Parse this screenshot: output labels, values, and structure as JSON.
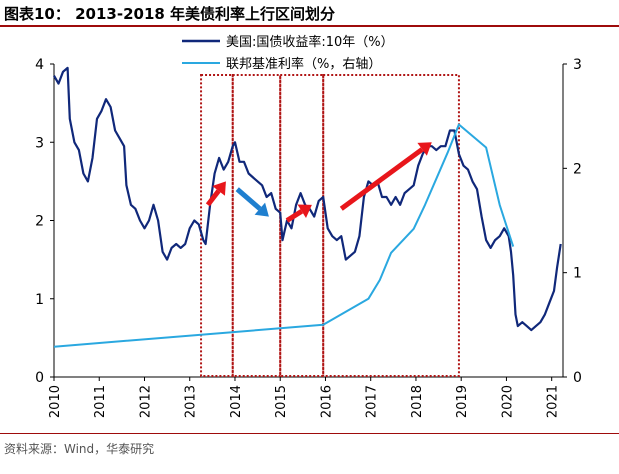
{
  "title": "图表10： 2013-2018 年美债利率上行区间划分",
  "source": "资料来源：Wind，华泰研究",
  "colors": {
    "treasury": "#10287a",
    "fed": "#2aa8e0",
    "up_arrow": "#e8161b",
    "down_arrow": "#1f7fcf",
    "box": "#b01515"
  },
  "chart_data": {
    "type": "line",
    "xlim": [
      2010,
      2021.25
    ],
    "x_ticks": [
      "2010",
      "2011",
      "2012",
      "2013",
      "2014",
      "2015",
      "2016",
      "2017",
      "2018",
      "2019",
      "2020",
      "2021"
    ],
    "y_left": {
      "lim": [
        0,
        4
      ],
      "ticks": [
        "0",
        "1",
        "2",
        "3",
        "4"
      ]
    },
    "y_right": {
      "lim": [
        0,
        3
      ],
      "ticks": [
        "0",
        "1",
        "2",
        "3"
      ]
    },
    "legend_position": "top-center",
    "grid": false,
    "series": [
      {
        "name": "美国:国债收益率:10年（%）",
        "axis": "left",
        "x": [
          2010.0,
          2010.1,
          2010.2,
          2010.3,
          2010.35,
          2010.45,
          2010.55,
          2010.65,
          2010.75,
          2010.85,
          2010.95,
          2011.05,
          2011.15,
          2011.25,
          2011.35,
          2011.45,
          2011.55,
          2011.6,
          2011.7,
          2011.8,
          2011.9,
          2012.0,
          2012.1,
          2012.2,
          2012.3,
          2012.4,
          2012.5,
          2012.6,
          2012.7,
          2012.8,
          2012.9,
          2013.0,
          2013.1,
          2013.2,
          2013.3,
          2013.35,
          2013.45,
          2013.55,
          2013.65,
          2013.75,
          2013.85,
          2013.95,
          2014.0,
          2014.1,
          2014.2,
          2014.3,
          2014.4,
          2014.5,
          2014.6,
          2014.7,
          2014.8,
          2014.9,
          2015.0,
          2015.05,
          2015.15,
          2015.25,
          2015.35,
          2015.45,
          2015.55,
          2015.65,
          2015.75,
          2015.85,
          2015.95,
          2016.05,
          2016.15,
          2016.25,
          2016.35,
          2016.45,
          2016.55,
          2016.65,
          2016.75,
          2016.85,
          2016.95,
          2017.05,
          2017.15,
          2017.25,
          2017.35,
          2017.45,
          2017.55,
          2017.65,
          2017.75,
          2017.85,
          2017.95,
          2018.05,
          2018.15,
          2018.25,
          2018.35,
          2018.45,
          2018.55,
          2018.65,
          2018.75,
          2018.85,
          2018.95,
          2019.05,
          2019.15,
          2019.25,
          2019.35,
          2019.45,
          2019.55,
          2019.65,
          2019.75,
          2019.85,
          2019.95,
          2020.05,
          2020.1,
          2020.15,
          2020.2,
          2020.25,
          2020.35,
          2020.45,
          2020.55,
          2020.65,
          2020.75,
          2020.85,
          2020.95,
          2021.05,
          2021.12,
          2021.2
        ],
        "values": [
          3.85,
          3.75,
          3.9,
          3.95,
          3.3,
          3.0,
          2.9,
          2.6,
          2.5,
          2.8,
          3.3,
          3.4,
          3.55,
          3.45,
          3.15,
          3.05,
          2.95,
          2.45,
          2.2,
          2.15,
          2.0,
          1.9,
          2.0,
          2.2,
          2.0,
          1.6,
          1.5,
          1.65,
          1.7,
          1.65,
          1.7,
          1.9,
          2.0,
          1.95,
          1.75,
          1.7,
          2.2,
          2.6,
          2.8,
          2.65,
          2.75,
          2.95,
          3.0,
          2.75,
          2.75,
          2.6,
          2.55,
          2.5,
          2.45,
          2.3,
          2.35,
          2.15,
          2.1,
          1.75,
          2.0,
          1.9,
          2.2,
          2.35,
          2.2,
          2.15,
          2.05,
          2.25,
          2.3,
          1.9,
          1.8,
          1.75,
          1.8,
          1.5,
          1.55,
          1.6,
          1.8,
          2.3,
          2.5,
          2.45,
          2.5,
          2.3,
          2.3,
          2.2,
          2.3,
          2.2,
          2.35,
          2.4,
          2.45,
          2.7,
          2.85,
          2.95,
          2.95,
          2.9,
          2.95,
          2.95,
          3.15,
          3.15,
          2.85,
          2.7,
          2.65,
          2.5,
          2.4,
          2.05,
          1.75,
          1.65,
          1.75,
          1.8,
          1.9,
          1.8,
          1.6,
          1.3,
          0.8,
          0.65,
          0.7,
          0.65,
          0.6,
          0.65,
          0.7,
          0.8,
          0.95,
          1.1,
          1.4,
          1.7
        ]
      },
      {
        "name": "联邦基准利率（%，右轴）",
        "axis": "right",
        "x": [
          2010.0,
          2015.95,
          2016.95,
          2017.2,
          2017.45,
          2017.95,
          2018.2,
          2018.45,
          2018.7,
          2018.95,
          2019.55,
          2019.85,
          2020.15
        ],
        "values": [
          0.29,
          0.5,
          0.75,
          0.93,
          1.19,
          1.42,
          1.65,
          1.9,
          2.15,
          2.42,
          2.2,
          1.65,
          1.25
        ]
      }
    ],
    "boxes": [
      {
        "x0": 2013.25,
        "x1": 2013.95
      },
      {
        "x0": 2013.95,
        "x1": 2015.0
      },
      {
        "x0": 2015.0,
        "x1": 2015.95
      },
      {
        "x0": 2015.95,
        "x1": 2018.95
      }
    ],
    "arrows": [
      {
        "kind": "up",
        "x0": 2013.4,
        "y0": 2.2,
        "x1": 2013.8,
        "y1": 2.5
      },
      {
        "kind": "down",
        "x0": 2014.05,
        "y0": 2.4,
        "x1": 2014.75,
        "y1": 2.05
      },
      {
        "kind": "up",
        "x0": 2015.15,
        "y0": 2.0,
        "x1": 2015.7,
        "y1": 2.2
      },
      {
        "kind": "up",
        "x0": 2016.35,
        "y0": 2.15,
        "x1": 2018.35,
        "y1": 3.0
      }
    ]
  }
}
